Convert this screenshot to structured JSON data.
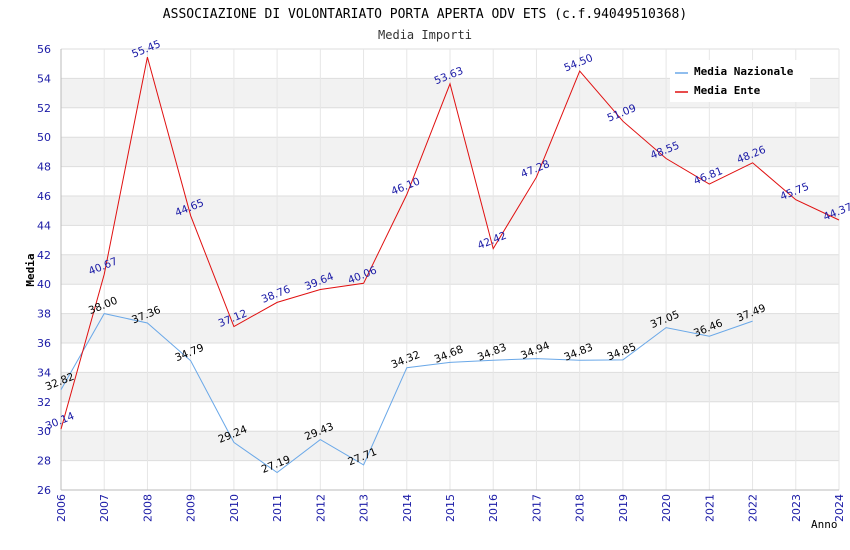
{
  "chart_data": {
    "type": "line",
    "title": "ASSOCIAZIONE DI VOLONTARIATO PORTA APERTA ODV ETS (c.f.94049510368)",
    "subtitle": "Media Importi",
    "xlabel": "Anno",
    "ylabel": "Media",
    "ylim": [
      26,
      56
    ],
    "yticks": [
      "26",
      "28",
      "30",
      "32",
      "34",
      "36",
      "38",
      "40",
      "42",
      "44",
      "46",
      "48",
      "50",
      "52",
      "54",
      "56"
    ],
    "categories": [
      "2006",
      "2007",
      "2008",
      "2009",
      "2010",
      "2011",
      "2012",
      "2013",
      "2014",
      "2015",
      "2016",
      "2017",
      "2018",
      "2019",
      "2020",
      "2021",
      "2022",
      "2023",
      "2024"
    ],
    "legend_position": "top-right",
    "series": [
      {
        "name": "Media Nazionale",
        "color": "#6aa8e8",
        "label_color": "#000000",
        "values": [
          32.82,
          38.0,
          37.36,
          34.79,
          29.24,
          27.19,
          29.43,
          27.71,
          34.32,
          34.68,
          34.83,
          34.94,
          34.83,
          34.85,
          37.05,
          36.46,
          37.49,
          null,
          null
        ],
        "labels": [
          "32.82",
          "38.00",
          "37.36",
          "34.79",
          "29.24",
          "27.19",
          "29.43",
          "27.71",
          "34.32",
          "34.68",
          "34.83",
          "34.94",
          "34.83",
          "34.85",
          "37.05",
          "36.46",
          "37.49",
          null,
          null
        ]
      },
      {
        "name": "Media Ente",
        "color": "#e01010",
        "label_color": "#1a1aa6",
        "values": [
          30.14,
          40.67,
          55.45,
          44.65,
          37.12,
          38.76,
          39.64,
          40.06,
          46.1,
          53.63,
          42.42,
          47.28,
          54.5,
          51.09,
          48.55,
          46.81,
          48.26,
          45.75,
          44.37
        ],
        "labels": [
          "30.14",
          "40.67",
          "55.45",
          "44.65",
          "37.12",
          "38.76",
          "39.64",
          "40.06",
          "46.10",
          "53.63",
          "42.42",
          "47.28",
          "54.50",
          "51.09",
          "48.55",
          "46.81",
          "48.26",
          "45.75",
          "44.37"
        ]
      }
    ]
  }
}
